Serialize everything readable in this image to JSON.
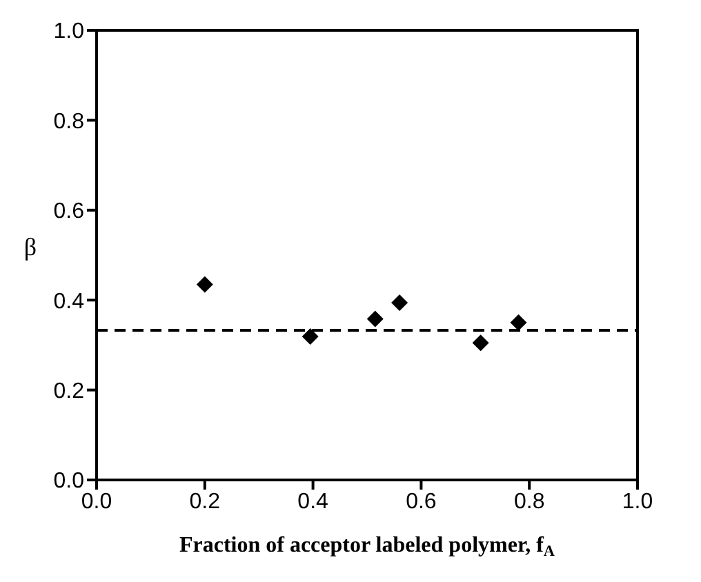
{
  "chart_data": {
    "type": "scatter",
    "xlabel": "Fraction of acceptor labeled polymer, f$_{A}$",
    "ylabel": "β",
    "x": [
      0.2,
      0.395,
      0.515,
      0.56,
      0.71,
      0.78
    ],
    "series": [
      {
        "color": "#000000",
        "values": [
          0.435,
          0.319,
          0.358,
          0.394,
          0.305,
          0.35
        ]
      }
    ],
    "xlim": [
      0,
      1
    ],
    "xticks": [
      {
        "value": 0,
        "label": "0.0"
      },
      0.2,
      0.4,
      0.6,
      0.8,
      {
        "value": 1,
        "label": "1.0"
      }
    ],
    "ylim": [
      0,
      1
    ],
    "yticks": [
      {
        "value": 0,
        "label": "0.0"
      },
      0.2,
      0.4,
      0.6,
      0.8,
      {
        "value": 1,
        "label": "1.0"
      }
    ],
    "ref_lines": [
      {
        "axis": "y",
        "value": 0.333,
        "color": "#000000",
        "line_style": "dashed"
      }
    ],
    "marker": "diamond",
    "grid": false,
    "legend": false
  }
}
